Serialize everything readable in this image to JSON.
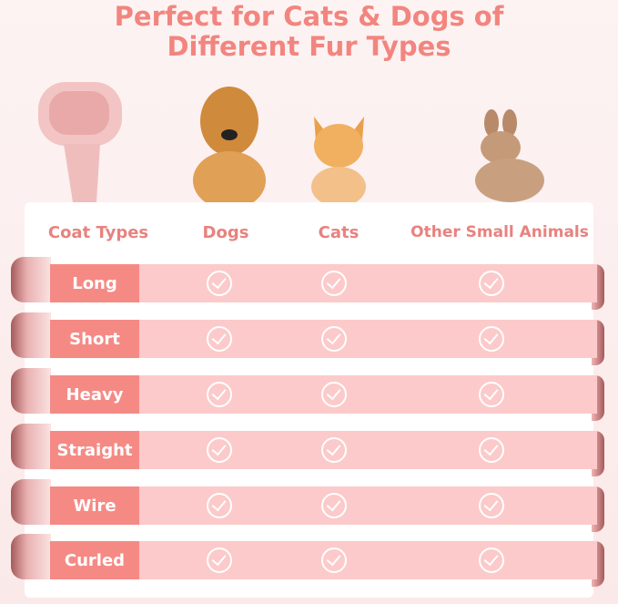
{
  "title": {
    "line1": "Perfect for Cats & Dogs of",
    "line2": "Different Fur Types"
  },
  "headers": [
    "Coat Types",
    "Dogs",
    "Cats",
    "Other Small Animals"
  ],
  "rows": [
    {
      "label": "Long",
      "dogs": true,
      "cats": true,
      "other": true
    },
    {
      "label": "Short",
      "dogs": true,
      "cats": true,
      "other": true
    },
    {
      "label": "Heavy",
      "dogs": true,
      "cats": true,
      "other": true
    },
    {
      "label": "Straight",
      "dogs": true,
      "cats": true,
      "other": true
    },
    {
      "label": "Wire",
      "dogs": true,
      "cats": true,
      "other": true
    },
    {
      "label": "Curled",
      "dogs": true,
      "cats": true,
      "other": true
    }
  ],
  "colors": {
    "accent": "#f2857f",
    "label_bg": "#f58a85",
    "row_bg": "#fccaca"
  },
  "icons": [
    "check-circle-icon"
  ]
}
